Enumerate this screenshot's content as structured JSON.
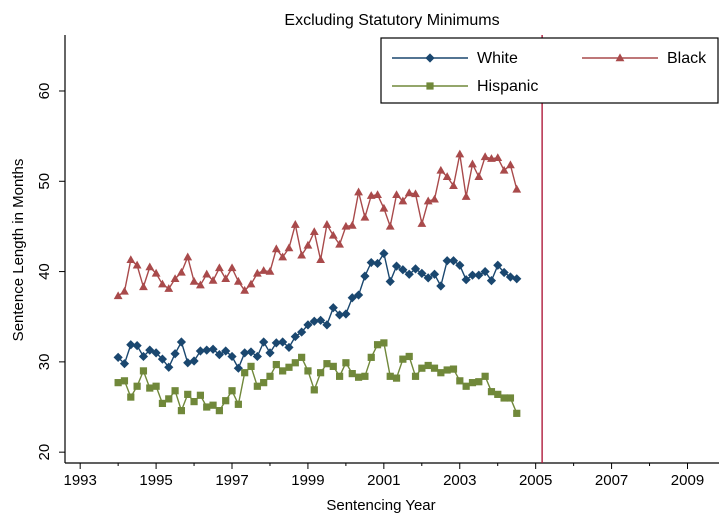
{
  "chart_data": {
    "type": "line",
    "title": "Excluding Statutory Minimums",
    "xlabel": "Sentencing Year",
    "ylabel": "Sentence Length in Months",
    "xlim": [
      1992.6,
      2009.83
    ],
    "ylim": [
      18.8,
      66.2
    ],
    "x_ticks": [
      1993,
      1995,
      1997,
      1999,
      2001,
      2003,
      2005,
      2007,
      2009
    ],
    "x_minor_ticks": [
      1994,
      1996,
      1998,
      2000,
      2002,
      2004,
      2006,
      2008
    ],
    "y_ticks": [
      20,
      30,
      40,
      50,
      60
    ],
    "grid": false,
    "legend_position": "top-right",
    "reference_line": {
      "x": 2005.17,
      "color": "#b01c3c"
    },
    "x_start": 1994,
    "x_step": 0.1667,
    "series": [
      {
        "name": "White",
        "color": "#1a476f",
        "marker": "diamond",
        "values": [
          30.5,
          29.8,
          31.9,
          31.8,
          30.6,
          31.3,
          31.0,
          30.3,
          29.4,
          30.9,
          32.2,
          29.9,
          30.1,
          31.2,
          31.3,
          31.4,
          30.8,
          31.2,
          30.6,
          29.3,
          31.0,
          31.1,
          30.6,
          32.2,
          31.0,
          32.1,
          32.2,
          31.6,
          32.8,
          33.3,
          34.1,
          34.5,
          34.6,
          34.1,
          36.0,
          35.2,
          35.3,
          37.1,
          37.4,
          39.5,
          41.0,
          40.9,
          42.0,
          38.9,
          40.6,
          40.2,
          39.7,
          40.3,
          39.8,
          39.3,
          39.7,
          38.4,
          41.2,
          41.2,
          40.7,
          39.1,
          39.6,
          39.6,
          40.0,
          39.0,
          40.7,
          39.9,
          39.4,
          39.2
        ]
      },
      {
        "name": "Black",
        "color": "#a94a4b",
        "marker": "triangle",
        "values": [
          37.3,
          37.8,
          41.3,
          40.7,
          38.3,
          40.5,
          39.8,
          38.6,
          38.1,
          39.2,
          39.9,
          41.6,
          38.9,
          38.5,
          39.7,
          39.0,
          40.4,
          39.2,
          40.4,
          38.9,
          37.9,
          38.6,
          39.8,
          40.1,
          40.0,
          42.5,
          41.6,
          42.6,
          45.2,
          41.8,
          42.9,
          44.4,
          41.3,
          45.2,
          44.0,
          43.0,
          45.0,
          45.1,
          48.8,
          46.0,
          48.4,
          48.5,
          47.0,
          45.0,
          48.5,
          47.8,
          48.7,
          48.6,
          45.3,
          47.8,
          48.0,
          51.2,
          50.5,
          49.5,
          53.0,
          48.3,
          51.9,
          50.5,
          52.7,
          52.5,
          52.6,
          51.2,
          51.8,
          49.1
        ]
      },
      {
        "name": "Hispanic",
        "color": "#70883a",
        "marker": "square",
        "values": [
          27.7,
          27.9,
          26.1,
          27.3,
          29.0,
          27.1,
          27.3,
          25.4,
          25.9,
          26.8,
          24.6,
          26.4,
          25.6,
          26.3,
          25.0,
          25.2,
          24.6,
          25.7,
          26.8,
          25.3,
          28.8,
          29.5,
          27.3,
          27.7,
          28.4,
          29.7,
          29.0,
          29.4,
          29.9,
          30.5,
          29.0,
          26.9,
          28.8,
          29.8,
          29.5,
          28.4,
          29.9,
          28.7,
          28.3,
          28.4,
          30.5,
          31.9,
          32.1,
          28.4,
          28.2,
          30.3,
          30.6,
          28.4,
          29.3,
          29.6,
          29.3,
          28.8,
          29.1,
          29.2,
          27.9,
          27.3,
          27.7,
          27.8,
          28.4,
          26.7,
          26.4,
          26.0,
          26.0,
          24.3
        ]
      }
    ]
  }
}
